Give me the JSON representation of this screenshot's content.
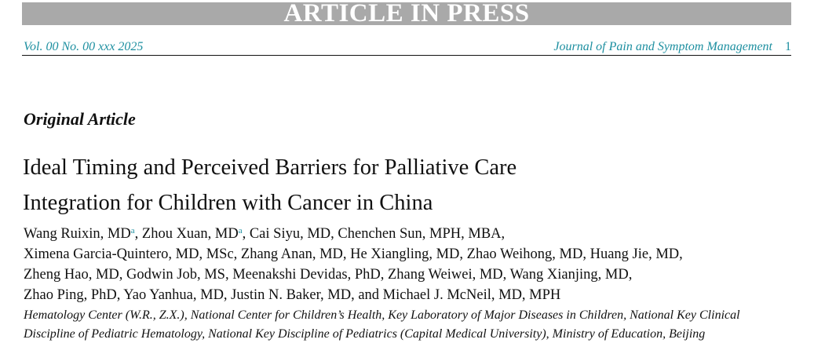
{
  "header": {
    "banner": "ARTICLE IN PRESS",
    "volume": "Vol. 00 No. 00 xxx 2025",
    "journal": "Journal of Pain and Symptom Management",
    "page": "1"
  },
  "article_type": "Original Article",
  "title": [
    "Ideal Timing and Perceived Barriers for Palliative Care",
    "Integration for Children with Cancer in China"
  ],
  "authors": [
    [
      "Wang Ruixin, MD",
      "a",
      ", Zhou Xuan, MD",
      "a",
      ", Cai Siyu, MD, Chenchen Sun, MPH, MBA,"
    ],
    "Ximena Garcia-Quintero, MD, MSc, Zhang Anan, MD, He Xiangling, MD, Zhao Weihong, MD, Huang Jie, MD,",
    "Zheng Hao, MD, Godwin Job, MS, Meenakshi Devidas, PhD, Zhang Weiwei, MD, Wang Xianjing, MD,",
    "Zhao Ping, PhD, Yao Yanhua, MD, Justin N. Baker, MD, and Michael J. McNeil, MD, MPH"
  ],
  "affiliation": [
    "Hematology Center (W.R., Z.X.), National Center for Children’s Health, Key Laboratory of Major Diseases in Children, National Key Clinical",
    "Discipline of Pediatric Hematology, National Key Discipline of Pediatrics (Capital Medical University), Ministry of Education, Beijing"
  ]
}
